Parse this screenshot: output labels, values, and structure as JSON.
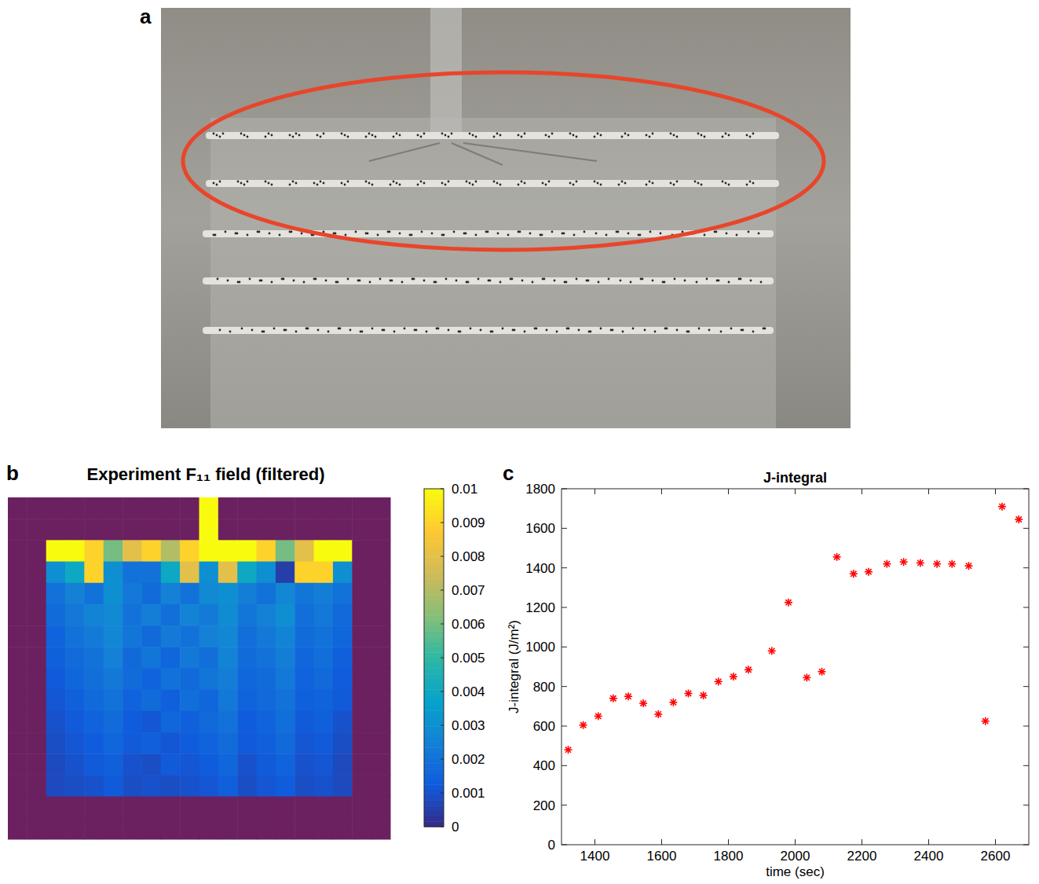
{
  "photo": {
    "letter": "a"
  },
  "chart_data": [
    {
      "type": "heatmap",
      "letter": "b",
      "title": "Experiment F₁₁ field (filtered)",
      "tick_labels": false,
      "colorbar_lim": [
        0,
        0.01
      ],
      "colorbar_ticks": [
        0,
        0.001,
        0.002,
        0.003,
        0.004,
        0.005,
        0.006,
        0.007,
        0.008,
        0.009,
        0.01
      ],
      "cells": [
        [
          null,
          null,
          null,
          null,
          null,
          null,
          null,
          null,
          null,
          null,
          0.01,
          null,
          null,
          null,
          null,
          null,
          null,
          null,
          null,
          null
        ],
        [
          null,
          null,
          null,
          null,
          null,
          null,
          null,
          null,
          null,
          null,
          0.01,
          null,
          null,
          null,
          null,
          null,
          null,
          null,
          null,
          null
        ],
        [
          null,
          null,
          0.01,
          0.01,
          0.009,
          0.006,
          0.008,
          0.009,
          0.007,
          0.009,
          0.01,
          0.01,
          0.01,
          0.009,
          0.006,
          0.008,
          0.01,
          0.01,
          null,
          null
        ],
        [
          null,
          null,
          0.003,
          0.004,
          0.009,
          0.003,
          0.002,
          0.002,
          0.004,
          0.008,
          0.003,
          0.008,
          0.004,
          0.003,
          0.0005,
          0.009,
          0.009,
          0.003,
          null,
          null
        ],
        [
          null,
          null,
          0.002,
          0.0025,
          0.002,
          0.003,
          0.0022,
          0.0018,
          0.0025,
          0.002,
          0.0028,
          0.003,
          0.0024,
          0.002,
          0.0027,
          0.0021,
          0.0024,
          0.002,
          null,
          null
        ],
        [
          null,
          null,
          0.0018,
          0.0022,
          0.0026,
          0.0028,
          0.002,
          0.0024,
          0.0019,
          0.0026,
          0.0023,
          0.0029,
          0.0021,
          0.0025,
          0.003,
          0.0019,
          0.0022,
          0.0017,
          null,
          null
        ],
        [
          null,
          null,
          0.0015,
          0.002,
          0.0023,
          0.0027,
          0.0021,
          0.0017,
          0.0023,
          0.002,
          0.0025,
          0.0027,
          0.0019,
          0.0022,
          0.0026,
          0.0018,
          0.002,
          0.0016,
          null,
          null
        ],
        [
          null,
          null,
          0.0014,
          0.0018,
          0.002,
          0.0025,
          0.0017,
          0.0021,
          0.0016,
          0.0022,
          0.0019,
          0.0026,
          0.0018,
          0.002,
          0.0024,
          0.0016,
          0.0019,
          0.0014,
          null,
          null
        ],
        [
          null,
          null,
          0.0012,
          0.0016,
          0.0019,
          0.0022,
          0.0018,
          0.0015,
          0.002,
          0.0017,
          0.0021,
          0.0024,
          0.0016,
          0.0018,
          0.0022,
          0.0015,
          0.0017,
          0.0013,
          null,
          null
        ],
        [
          null,
          null,
          0.0011,
          0.0014,
          0.0017,
          0.002,
          0.0015,
          0.0018,
          0.0014,
          0.0019,
          0.0016,
          0.0022,
          0.0015,
          0.0017,
          0.002,
          0.0014,
          0.0015,
          0.0012,
          null,
          null
        ],
        [
          null,
          null,
          0.001,
          0.0012,
          0.0015,
          0.0018,
          0.0013,
          0.0011,
          0.0016,
          0.0014,
          0.0017,
          0.002,
          0.0013,
          0.0015,
          0.0019,
          0.0012,
          0.0014,
          0.001,
          null,
          null
        ],
        [
          null,
          null,
          0.0009,
          0.0011,
          0.0013,
          0.0016,
          0.0012,
          0.0014,
          0.0011,
          0.0013,
          0.0015,
          0.0018,
          0.0012,
          0.0014,
          0.0017,
          0.0011,
          0.0012,
          0.0009,
          null,
          null
        ],
        [
          null,
          null,
          0.0008,
          0.001,
          0.0012,
          0.0014,
          0.001,
          0.0009,
          0.0012,
          0.0011,
          0.0013,
          0.0016,
          0.001,
          0.0012,
          0.0015,
          0.001,
          0.0011,
          0.0008,
          null,
          null
        ],
        [
          null,
          null,
          0.0008,
          0.0009,
          0.001,
          0.0012,
          0.0009,
          0.001,
          0.0009,
          0.001,
          0.0011,
          0.0014,
          0.0009,
          0.0011,
          0.0013,
          0.0009,
          0.001,
          0.0008,
          null,
          null
        ],
        [
          null,
          null,
          null,
          null,
          null,
          null,
          null,
          null,
          null,
          null,
          null,
          null,
          null,
          null,
          null,
          null,
          null,
          null,
          null,
          null
        ],
        [
          null,
          null,
          null,
          null,
          null,
          null,
          null,
          null,
          null,
          null,
          null,
          null,
          null,
          null,
          null,
          null,
          null,
          null,
          null,
          null
        ]
      ]
    },
    {
      "type": "scatter",
      "letter": "c",
      "title": "J-integral",
      "x_label": "time (sec)",
      "y_label": "J-integral (J/m²)",
      "marker": "asterisk",
      "color": "#ff0000",
      "x": [
        1320,
        1365,
        1410,
        1455,
        1500,
        1545,
        1590,
        1635,
        1680,
        1725,
        1770,
        1815,
        1860,
        1930,
        1980,
        2035,
        2080,
        2125,
        2175,
        2220,
        2275,
        2325,
        2375,
        2425,
        2470,
        2520,
        2570,
        2620,
        2670
      ],
      "values": [
        480,
        605,
        650,
        740,
        750,
        715,
        660,
        720,
        765,
        755,
        825,
        850,
        885,
        980,
        1225,
        845,
        875,
        1455,
        1370,
        1380,
        1420,
        1430,
        1425,
        1420,
        1420,
        1410,
        625,
        1710,
        1645
      ],
      "xlim": [
        1300,
        2700
      ],
      "xticks": [
        1400,
        1600,
        1800,
        2000,
        2200,
        2400,
        2600
      ],
      "ylim": [
        0,
        1800
      ],
      "yticks": [
        0,
        200,
        400,
        600,
        800,
        1000,
        1200,
        1400,
        1600,
        1800
      ]
    }
  ]
}
